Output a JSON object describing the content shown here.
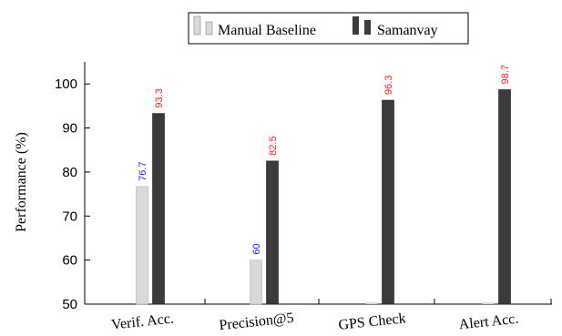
{
  "chart_data": {
    "type": "bar",
    "categories": [
      "Verif. Acc.",
      "Precision@5",
      "GPS Check",
      "Alert Acc."
    ],
    "series": [
      {
        "name": "Manual Baseline",
        "values": [
          76.7,
          60,
          null,
          null
        ],
        "labels": [
          "76.7",
          "60",
          "",
          ""
        ],
        "color": "#d9d9d9",
        "label_color": "#1a1aff"
      },
      {
        "name": "Samanvay",
        "values": [
          93.3,
          82.5,
          96.3,
          98.7
        ],
        "labels": [
          "93.3",
          "82.5",
          "96.3",
          "98.7"
        ],
        "color": "#3b3b3b",
        "label_color": "#ff2020"
      }
    ],
    "ylabel": "Performance (%)",
    "xlabel": "",
    "ylim": [
      50,
      105
    ],
    "yticks": [
      "50",
      "60",
      "70",
      "80",
      "90",
      "100"
    ],
    "grid": false,
    "legend_position": "top"
  }
}
